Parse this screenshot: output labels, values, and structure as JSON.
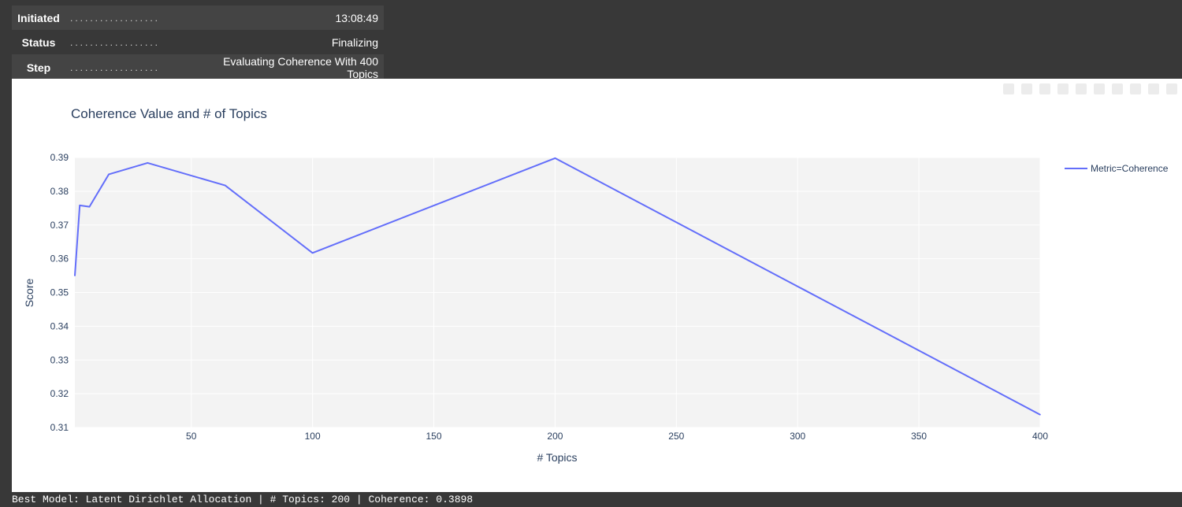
{
  "status": {
    "rows": [
      {
        "key": "Initiated",
        "dots": "..................",
        "value": "13:08:49"
      },
      {
        "key": "Status",
        "dots": "..................",
        "value": "Finalizing"
      },
      {
        "key": "Step",
        "dots": "..................",
        "value": "Evaluating Coherence With 400 Topics"
      }
    ]
  },
  "colors": {
    "line": "#636efa",
    "plot_bg": "#f3f3f3",
    "grid": "#ffffff",
    "text": "#2a3f5f"
  },
  "chart_data": {
    "type": "line",
    "title": "Coherence Value and # of Topics",
    "xlabel": "# Topics",
    "ylabel": "Score",
    "xlim": [
      2,
      400
    ],
    "ylim": [
      0.31,
      0.39
    ],
    "x_ticks": [
      50,
      100,
      150,
      200,
      250,
      300,
      350,
      400
    ],
    "y_ticks": [
      0.31,
      0.32,
      0.33,
      0.34,
      0.35,
      0.36,
      0.37,
      0.38,
      0.39
    ],
    "legend_position": "top-right",
    "grid": true,
    "series": [
      {
        "name": "Metric=Coherence",
        "x": [
          2,
          4,
          8,
          16,
          32,
          64,
          100,
          200,
          400
        ],
        "y": [
          0.355,
          0.3758,
          0.3754,
          0.385,
          0.3884,
          0.3817,
          0.3617,
          0.3898,
          0.3138
        ]
      }
    ]
  },
  "footer": {
    "text": "Best Model: Latent Dirichlet Allocation | # Topics: 200 | Coherence: 0.3898"
  }
}
